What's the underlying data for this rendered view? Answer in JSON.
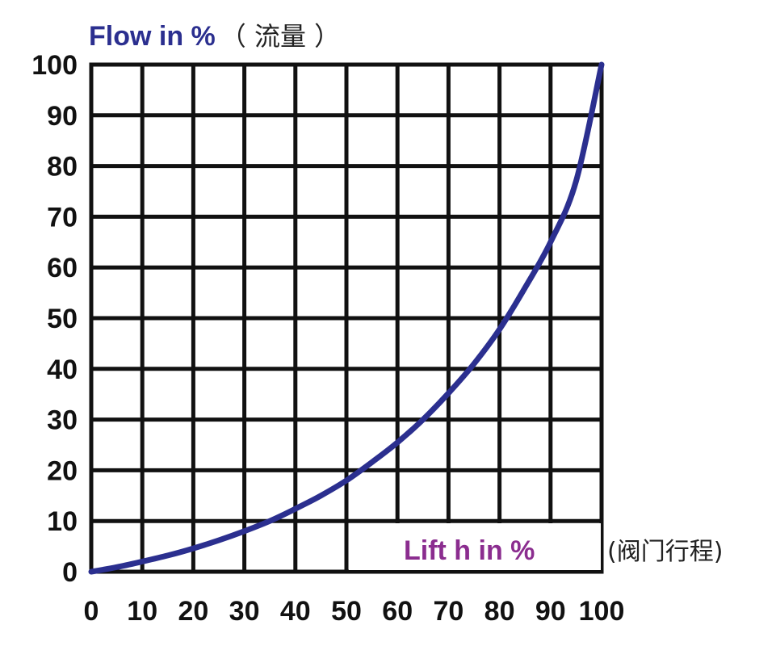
{
  "chart_data": {
    "type": "line",
    "ylabel": "Flow in %",
    "ylabel_cn": "（ 流量 ）",
    "xlabel": "Lift h in %",
    "xlabel_cn": "(阀门行程)",
    "xlim": [
      0,
      100
    ],
    "ylim": [
      0,
      100
    ],
    "x_ticks": [
      "0",
      "10",
      "20",
      "30",
      "40",
      "50",
      "60",
      "70",
      "80",
      "90",
      "100"
    ],
    "y_ticks": [
      "0",
      "10",
      "20",
      "30",
      "40",
      "50",
      "60",
      "70",
      "80",
      "90",
      "100"
    ],
    "grid": true,
    "series": [
      {
        "x": [
          0,
          5,
          10,
          15,
          20,
          25,
          30,
          35,
          40,
          45,
          50,
          55,
          60,
          65,
          70,
          75,
          80,
          85,
          90,
          95,
          100
        ],
        "y": [
          0,
          0.9,
          2.0,
          3.2,
          4.6,
          6.2,
          8.0,
          10.0,
          12.4,
          15.0,
          18.0,
          21.6,
          25.5,
          30.0,
          35.2,
          41.0,
          47.8,
          56.0,
          65.0,
          77.0,
          100
        ],
        "color": "#2b2f8f"
      }
    ],
    "colors": {
      "ylabel": "#2b2f8f",
      "xlabel": "#8b2d8f",
      "grid": "#111111"
    }
  }
}
